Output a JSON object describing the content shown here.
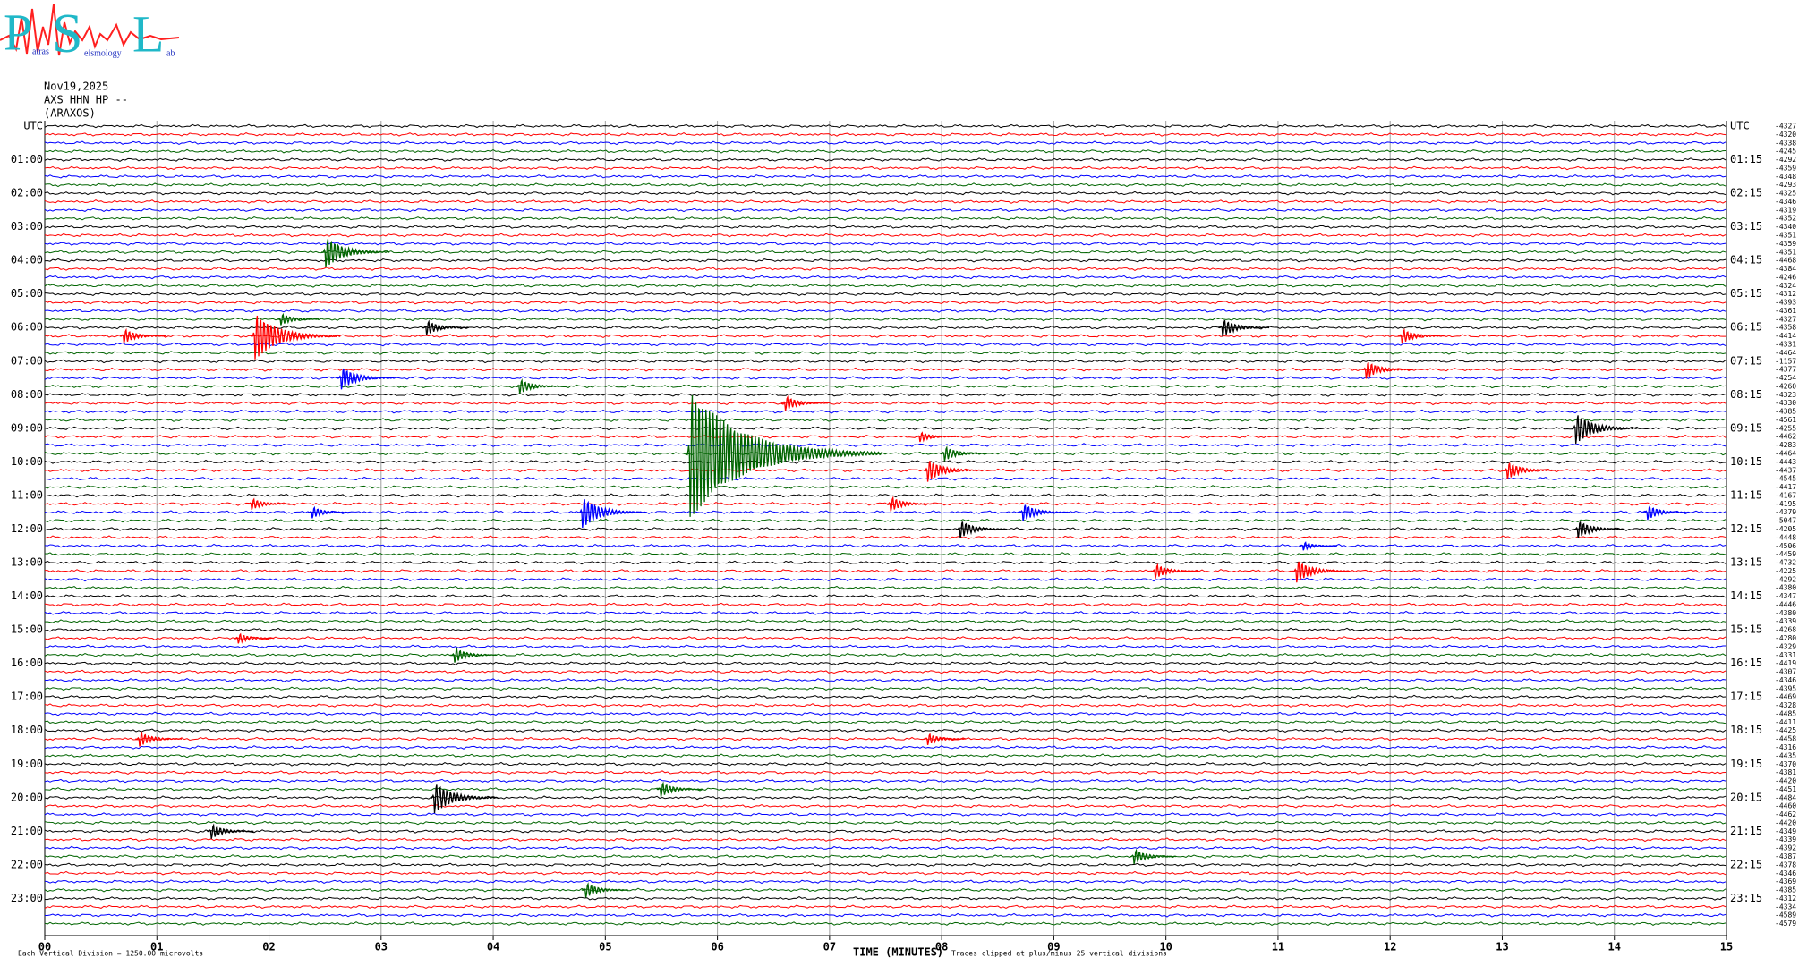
{
  "logo": {
    "letters": [
      "P",
      "S",
      "L"
    ],
    "words": [
      "atras",
      "eismology",
      "ab"
    ]
  },
  "header": {
    "date": "Nov19,2025",
    "channel": "AXS HHN HP --",
    "station": "(ARAXOS)"
  },
  "chart_data": {
    "type": "helicorder",
    "left_labels": [
      "UTC",
      "01:00",
      "02:00",
      "03:00",
      "04:00",
      "05:00",
      "06:00",
      "07:00",
      "08:00",
      "09:00",
      "10:00",
      "11:00",
      "12:00",
      "13:00",
      "14:00",
      "15:00",
      "16:00",
      "17:00",
      "18:00",
      "19:00",
      "20:00",
      "21:00",
      "22:00",
      "23:00"
    ],
    "right_labels": [
      "UTC",
      "01:15",
      "02:15",
      "03:15",
      "04:15",
      "05:15",
      "06:15",
      "07:15",
      "08:15",
      "09:15",
      "10:15",
      "11:15",
      "12:15",
      "13:15",
      "14:15",
      "15:15",
      "16:15",
      "17:15",
      "18:15",
      "19:15",
      "20:15",
      "21:15",
      "22:15",
      "23:15"
    ],
    "offset_labels": [
      "-4327",
      "-4320",
      "-4338",
      "-4245",
      "-4292",
      "-4359",
      "-4348",
      "-4293",
      "-4325",
      "-4346",
      "-4319",
      "-4352",
      "-4340",
      "-4351",
      "-4359",
      "-4351",
      "-4468",
      "-4384",
      "-4246",
      "-4324",
      "-4312",
      "-4393",
      "-4361",
      "-4327",
      "-4358",
      "-4414",
      "-4331",
      "-4464",
      "-1157",
      "-4377",
      "-4254",
      "-4260",
      "-4323",
      "-4330",
      "-4385",
      "-4561",
      "-4255",
      "-4462",
      "-4283",
      "-4464",
      "-4443",
      "-4437",
      "-4545",
      "-4417",
      "-4167",
      "-4195",
      "-4379",
      "-5047",
      "-4205",
      "-4448",
      "-4506",
      "-4459",
      "-4732",
      "-4225",
      "-4292",
      "-4380",
      "-4347",
      "-4446",
      "-4380",
      "-4339",
      "-4268",
      "-4280",
      "-4329",
      "-4331",
      "-4419",
      "-4307",
      "-4346",
      "-4395",
      "-4469",
      "-4328",
      "-4485",
      "-4411",
      "-4425",
      "-4458",
      "-4316",
      "-4435",
      "-4370",
      "-4381",
      "-4420",
      "-4451",
      "-4484",
      "-4460",
      "-4462",
      "-4420",
      "-4349",
      "-4339",
      "-4392",
      "-4387",
      "-4378",
      "-4346",
      "-4369",
      "-4385",
      "-4312",
      "-4334",
      "-4589",
      "-4579"
    ],
    "trace_colors": [
      "#000000",
      "#ff0000",
      "#0000ff",
      "#006400"
    ],
    "xlim": [
      0,
      15
    ],
    "xticks": [
      {
        "value": 0,
        "label": "00"
      },
      {
        "value": 1,
        "label": "01"
      },
      {
        "value": 2,
        "label": "02"
      },
      {
        "value": 3,
        "label": "03"
      },
      {
        "value": 4,
        "label": "04"
      },
      {
        "value": 5,
        "label": "05"
      },
      {
        "value": 6,
        "label": "06"
      },
      {
        "value": 7,
        "label": "07"
      },
      {
        "value": 8,
        "label": "08"
      },
      {
        "value": 9,
        "label": "09"
      },
      10,
      11,
      12,
      13,
      14,
      15
    ],
    "grid": true,
    "xlabel": "TIME (MINUTES)",
    "scale_note": "Each Vertical Division = 1250.00 microvolts",
    "clip_note": "Traces clipped at plus/minus 25 vertical divisions",
    "events": [
      {
        "row": 15,
        "minute": 2.5,
        "amplitude": 2
      },
      {
        "row": 23,
        "minute": 2.1,
        "amplitude": 0.8
      },
      {
        "row": 24,
        "minute": 3.4,
        "amplitude": 1
      },
      {
        "row": 24,
        "minute": 10.5,
        "amplitude": 1.2
      },
      {
        "row": 25,
        "minute": 0.7,
        "amplitude": 1
      },
      {
        "row": 25,
        "minute": 1.87,
        "amplitude": 3
      },
      {
        "row": 25,
        "minute": 12.1,
        "amplitude": 1
      },
      {
        "row": 29,
        "minute": 11.78,
        "amplitude": 1.2
      },
      {
        "row": 30,
        "minute": 2.64,
        "amplitude": 1.5
      },
      {
        "row": 31,
        "minute": 4.23,
        "amplitude": 1
      },
      {
        "row": 33,
        "minute": 6.6,
        "amplitude": 1
      },
      {
        "row": 36,
        "minute": 13.65,
        "amplitude": 2
      },
      {
        "row": 37,
        "minute": 7.8,
        "amplitude": 0.7
      },
      {
        "row": 39,
        "minute": 5.75,
        "amplitude": 8
      },
      {
        "row": 39,
        "minute": 8.02,
        "amplitude": 1
      },
      {
        "row": 41,
        "minute": 7.87,
        "amplitude": 1.5
      },
      {
        "row": 41,
        "minute": 13.04,
        "amplitude": 1.2
      },
      {
        "row": 45,
        "minute": 1.84,
        "amplitude": 0.8
      },
      {
        "row": 45,
        "minute": 7.54,
        "amplitude": 1
      },
      {
        "row": 46,
        "minute": 2.38,
        "amplitude": 0.8
      },
      {
        "row": 46,
        "minute": 4.79,
        "amplitude": 2
      },
      {
        "row": 46,
        "minute": 8.72,
        "amplitude": 1.2
      },
      {
        "row": 46,
        "minute": 14.29,
        "amplitude": 1
      },
      {
        "row": 48,
        "minute": 8.16,
        "amplitude": 1.2
      },
      {
        "row": 48,
        "minute": 13.67,
        "amplitude": 1.2
      },
      {
        "row": 50,
        "minute": 11.22,
        "amplitude": 0.6
      },
      {
        "row": 53,
        "minute": 9.9,
        "amplitude": 1
      },
      {
        "row": 53,
        "minute": 11.16,
        "amplitude": 1.5
      },
      {
        "row": 61,
        "minute": 1.72,
        "amplitude": 0.7
      },
      {
        "row": 63,
        "minute": 3.65,
        "amplitude": 1
      },
      {
        "row": 73,
        "minute": 0.84,
        "amplitude": 1
      },
      {
        "row": 73,
        "minute": 7.87,
        "amplitude": 0.8
      },
      {
        "row": 79,
        "minute": 5.49,
        "amplitude": 1
      },
      {
        "row": 80,
        "minute": 3.47,
        "amplitude": 2
      },
      {
        "row": 84,
        "minute": 1.48,
        "amplitude": 1
      },
      {
        "row": 87,
        "minute": 9.71,
        "amplitude": 1
      },
      {
        "row": 91,
        "minute": 4.82,
        "amplitude": 1
      }
    ]
  }
}
